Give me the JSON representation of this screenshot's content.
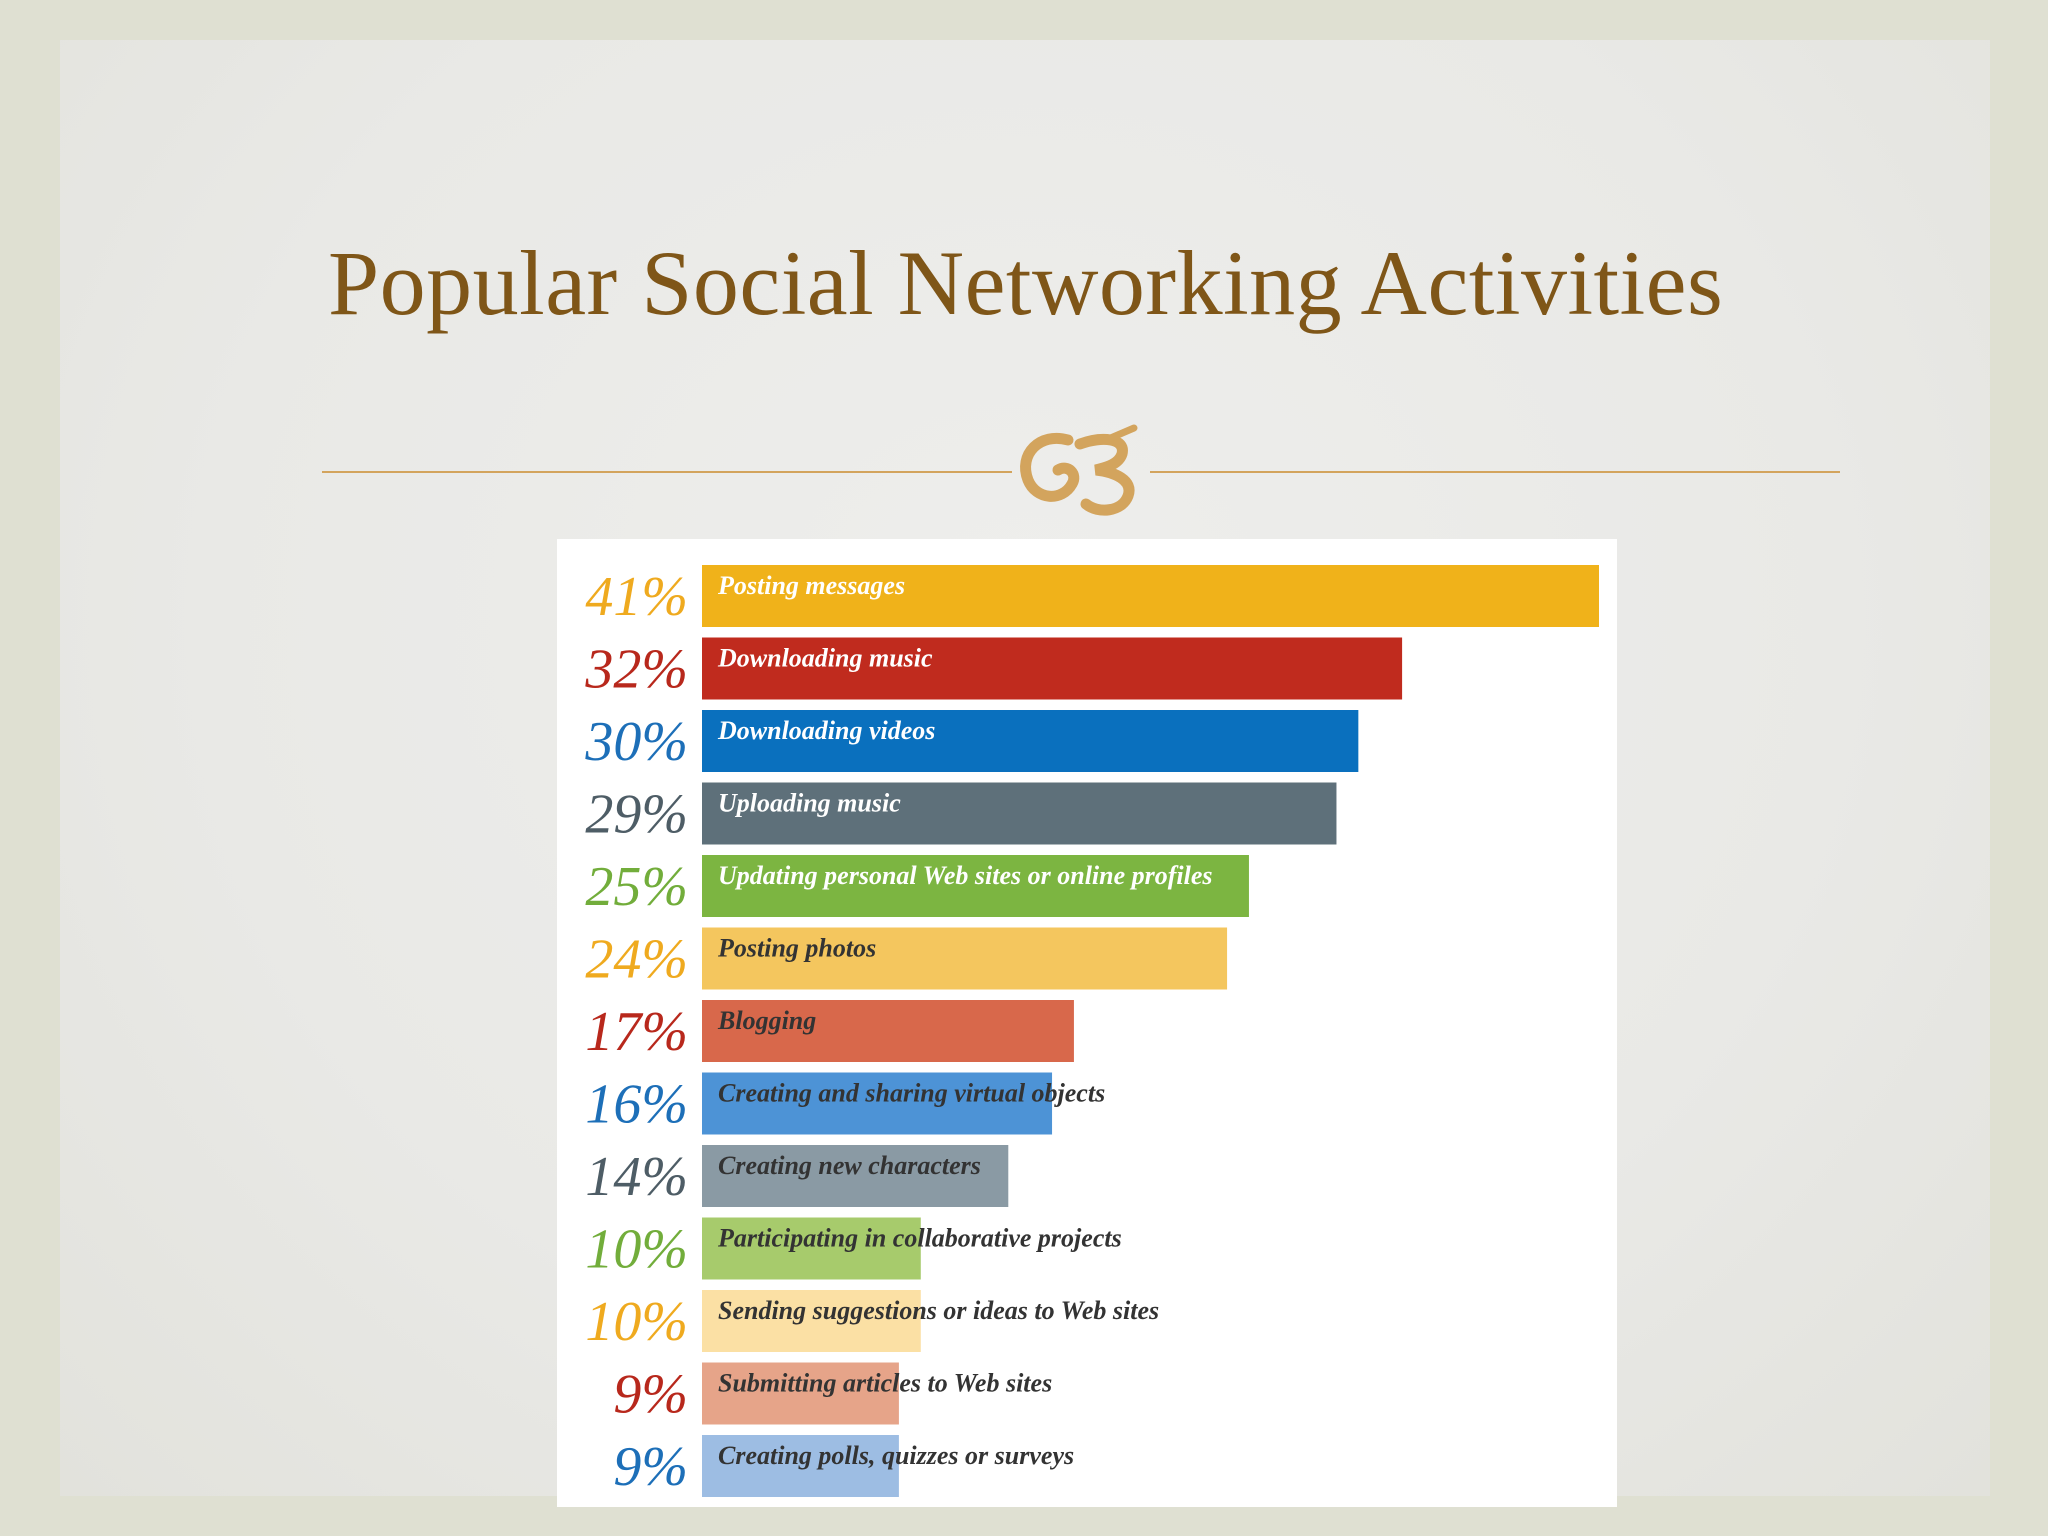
{
  "slide": {
    "title": "Popular Social Networking Activities",
    "ornament_icon": "swirl-ornament-icon"
  },
  "chart_data": {
    "type": "bar",
    "orientation": "horizontal",
    "title": "",
    "xlabel": "",
    "ylabel": "",
    "xlim": [
      0,
      41
    ],
    "grid": false,
    "legend": "none",
    "categories": [
      "Posting messages",
      "Downloading music",
      "Downloading videos",
      "Uploading music",
      "Updating personal Web sites or online profiles",
      "Posting photos",
      "Blogging",
      "Creating and sharing virtual objects",
      "Creating new characters",
      "Participating in collaborative projects",
      "Sending suggestions or ideas to Web sites",
      "Submitting articles to Web sites",
      "Creating polls, quizzes or surveys"
    ],
    "values": [
      41,
      32,
      30,
      29,
      25,
      24,
      17,
      16,
      14,
      10,
      10,
      9,
      9
    ],
    "value_labels": [
      "41%",
      "32%",
      "30%",
      "29%",
      "25%",
      "24%",
      "17%",
      "16%",
      "14%",
      "10%",
      "10%",
      "9%",
      "9%"
    ],
    "bar_colors": [
      "#f0b21a",
      "#c02b1e",
      "#0a70be",
      "#5e707a",
      "#7cb541",
      "#f4c65e",
      "#d8684b",
      "#4d93d6",
      "#8a9aa4",
      "#a7cb6c",
      "#fbe0a4",
      "#e6a489",
      "#9dbde3"
    ],
    "value_label_colors": [
      "#efaa1f",
      "#b8281c",
      "#1d6fb8",
      "#4e5d66",
      "#72ad3b",
      "#efaa1f",
      "#b8281c",
      "#1d6fb8",
      "#4e5d66",
      "#72ad3b",
      "#efaa1f",
      "#b8281c",
      "#1d6fb8"
    ],
    "label_colors": [
      "#ffffff",
      "#ffffff",
      "#ffffff",
      "#ffffff",
      "#ffffff",
      "#333333",
      "#333333",
      "#333333",
      "#333333",
      "#333333",
      "#333333",
      "#333333",
      "#333333"
    ]
  }
}
